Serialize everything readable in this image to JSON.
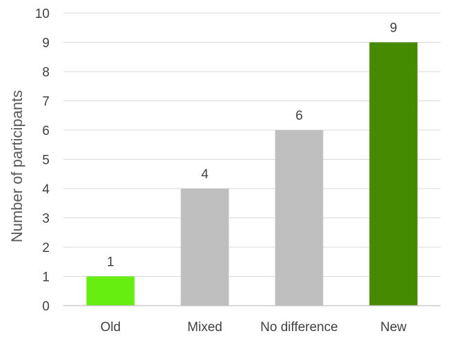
{
  "chart_data": {
    "type": "bar",
    "title": "",
    "xlabel": "",
    "ylabel": "Number of participants",
    "categories": [
      "Old",
      "Mixed",
      "No difference",
      "New"
    ],
    "values": [
      1,
      4,
      6,
      9
    ],
    "data_labels": [
      "1",
      "4",
      "6",
      "9"
    ],
    "bar_colors": [
      "#66ee11",
      "#bfbfbf",
      "#bfbfbf",
      "#458a00"
    ],
    "ylim": [
      0,
      10
    ],
    "yticks": [
      0,
      1,
      2,
      3,
      4,
      5,
      6,
      7,
      8,
      9,
      10
    ],
    "ytick_labels": [
      "0",
      "1",
      "2",
      "3",
      "4",
      "5",
      "6",
      "7",
      "8",
      "9",
      "10"
    ],
    "grid": true,
    "legend": "none"
  }
}
